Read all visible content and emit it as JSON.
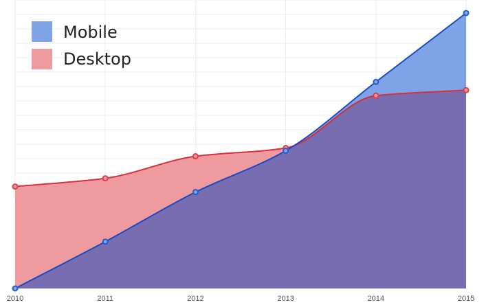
{
  "chart_data": {
    "type": "area",
    "title": "",
    "xlabel": "",
    "ylabel": "",
    "x": [
      "2010",
      "2011",
      "2012",
      "2013",
      "2014",
      "2015"
    ],
    "ylim": [
      0,
      100
    ],
    "grid": true,
    "legend_position": "top-left",
    "series": [
      {
        "name": "Mobile",
        "values": [
          0,
          17,
          35,
          50,
          75,
          100
        ],
        "fill_color": "#7ea3e6",
        "line_color": "#1a4bc4",
        "point_color": "#2259d6"
      },
      {
        "name": "Desktop",
        "values": [
          37,
          40,
          48,
          51,
          70,
          72
        ],
        "fill_color": "#ee9a9e",
        "line_color": "#d6303c",
        "point_color": "#e03a48"
      }
    ],
    "overlap_color": "#786db0"
  }
}
